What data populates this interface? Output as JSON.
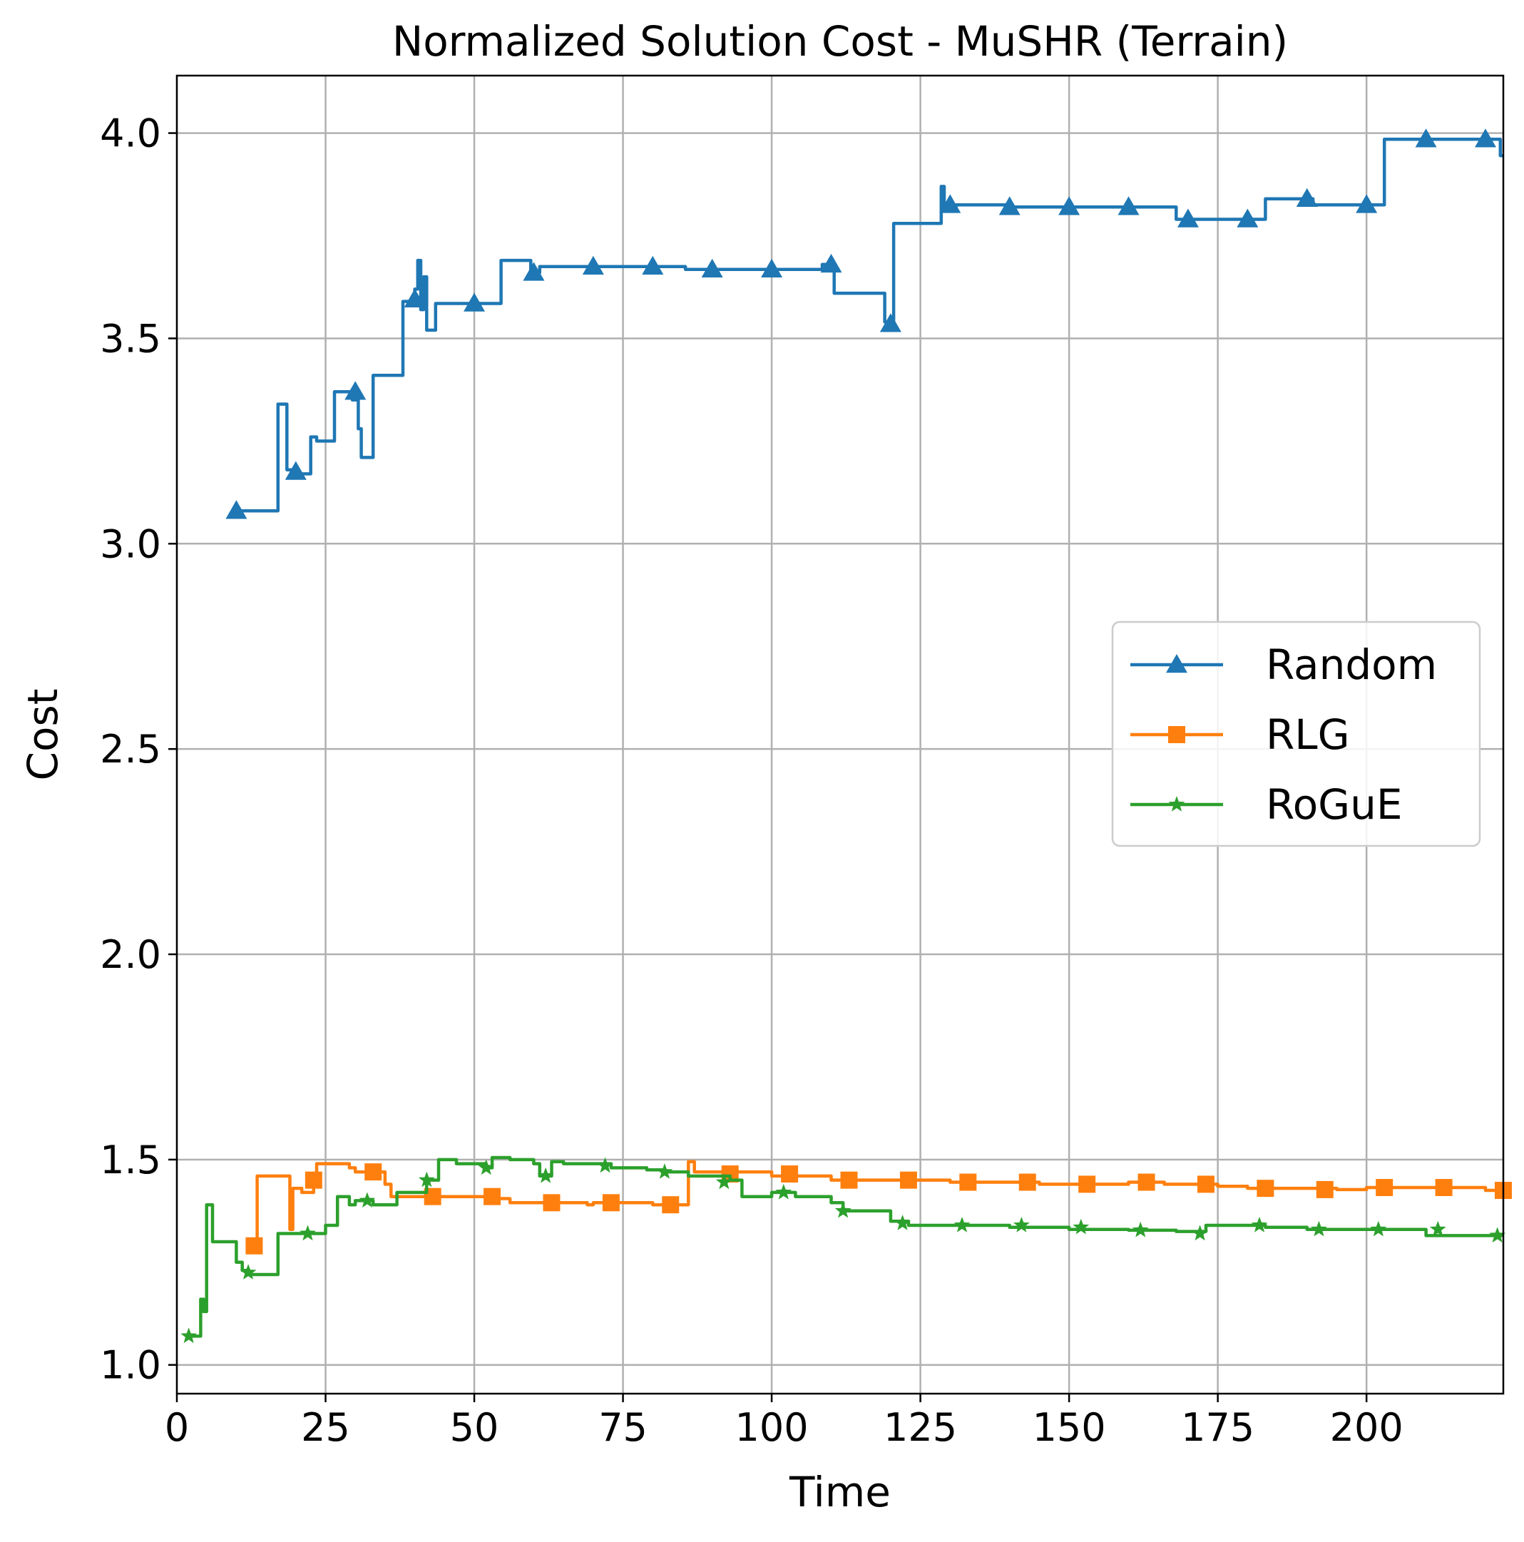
{
  "chart_data": {
    "type": "line",
    "title": "Normalized Solution Cost - MuSHR (Terrain)",
    "xlabel": "Time",
    "ylabel": "Cost",
    "xlim": [
      0,
      223
    ],
    "ylim": [
      0.93,
      4.14
    ],
    "x_ticks": [
      0,
      25,
      50,
      75,
      100,
      125,
      150,
      175,
      200
    ],
    "y_ticks": [
      1.0,
      1.5,
      2.0,
      2.5,
      3.0,
      3.5,
      4.0
    ],
    "x_tick_labels": [
      "0",
      "25",
      "50",
      "75",
      "100",
      "125",
      "150",
      "175",
      "200"
    ],
    "y_tick_labels": [
      "1.0",
      "1.5",
      "2.0",
      "2.5",
      "3.0",
      "3.5",
      "4.0"
    ],
    "grid": true,
    "legend_position": "center-right",
    "series": [
      {
        "name": "Random",
        "color": "#1f77b4",
        "marker": "triangle",
        "step_points": [
          [
            10,
            3.08
          ],
          [
            17,
            3.08
          ],
          [
            17,
            3.34
          ],
          [
            18.5,
            3.34
          ],
          [
            18.5,
            3.18
          ],
          [
            20.5,
            3.18
          ],
          [
            20.5,
            3.17
          ],
          [
            22.5,
            3.17
          ],
          [
            22.5,
            3.26
          ],
          [
            23.5,
            3.26
          ],
          [
            23.5,
            3.25
          ],
          [
            26.5,
            3.25
          ],
          [
            26.5,
            3.37
          ],
          [
            29.5,
            3.37
          ],
          [
            29.5,
            3.35
          ],
          [
            30.5,
            3.35
          ],
          [
            30.5,
            3.28
          ],
          [
            31,
            3.28
          ],
          [
            31,
            3.21
          ],
          [
            33,
            3.21
          ],
          [
            33,
            3.41
          ],
          [
            38,
            3.41
          ],
          [
            38,
            3.59
          ],
          [
            40,
            3.59
          ],
          [
            40,
            3.62
          ],
          [
            40.5,
            3.62
          ],
          [
            40.5,
            3.69
          ],
          [
            41,
            3.69
          ],
          [
            41,
            3.57
          ],
          [
            41.5,
            3.57
          ],
          [
            41.5,
            3.65
          ],
          [
            42,
            3.65
          ],
          [
            42,
            3.52
          ],
          [
            43.5,
            3.52
          ],
          [
            43.5,
            3.585
          ],
          [
            54.5,
            3.585
          ],
          [
            54.5,
            3.69
          ],
          [
            59.5,
            3.69
          ],
          [
            59.5,
            3.66
          ],
          [
            61,
            3.66
          ],
          [
            61,
            3.675
          ],
          [
            85.5,
            3.675
          ],
          [
            85.5,
            3.668
          ],
          [
            108.5,
            3.668
          ],
          [
            108.5,
            3.68
          ],
          [
            110.5,
            3.68
          ],
          [
            110.5,
            3.61
          ],
          [
            119,
            3.61
          ],
          [
            119,
            3.54
          ],
          [
            120.5,
            3.54
          ],
          [
            120.5,
            3.78
          ],
          [
            128.5,
            3.78
          ],
          [
            128.5,
            3.87
          ],
          [
            129,
            3.87
          ],
          [
            129,
            3.82
          ],
          [
            131,
            3.82
          ],
          [
            131,
            3.825
          ],
          [
            140,
            3.825
          ],
          [
            140,
            3.82
          ],
          [
            168,
            3.82
          ],
          [
            168,
            3.79
          ],
          [
            183,
            3.79
          ],
          [
            183,
            3.84
          ],
          [
            191,
            3.84
          ],
          [
            191,
            3.825
          ],
          [
            203,
            3.825
          ],
          [
            203,
            3.985
          ],
          [
            222.5,
            3.985
          ],
          [
            222.5,
            3.945
          ],
          [
            223,
            3.945
          ]
        ],
        "markers": [
          [
            10,
            3.08
          ],
          [
            20,
            3.175
          ],
          [
            30,
            3.37
          ],
          [
            40,
            3.595
          ],
          [
            50,
            3.585
          ],
          [
            60,
            3.66
          ],
          [
            70,
            3.675
          ],
          [
            80,
            3.675
          ],
          [
            90,
            3.668
          ],
          [
            100,
            3.668
          ],
          [
            110,
            3.68
          ],
          [
            120,
            3.535
          ],
          [
            130,
            3.825
          ],
          [
            140,
            3.82
          ],
          [
            150,
            3.82
          ],
          [
            160,
            3.82
          ],
          [
            170,
            3.79
          ],
          [
            180,
            3.79
          ],
          [
            190,
            3.84
          ],
          [
            200,
            3.825
          ],
          [
            210,
            3.985
          ],
          [
            220,
            3.985
          ]
        ]
      },
      {
        "name": "RLG",
        "color": "#ff7f0e",
        "marker": "square",
        "step_points": [
          [
            13,
            1.29
          ],
          [
            13.5,
            1.29
          ],
          [
            13.5,
            1.46
          ],
          [
            19,
            1.46
          ],
          [
            19,
            1.33
          ],
          [
            19.5,
            1.33
          ],
          [
            19.5,
            1.43
          ],
          [
            21,
            1.43
          ],
          [
            21,
            1.42
          ],
          [
            23,
            1.42
          ],
          [
            23,
            1.46
          ],
          [
            23.5,
            1.46
          ],
          [
            23.5,
            1.49
          ],
          [
            29,
            1.49
          ],
          [
            29,
            1.48
          ],
          [
            30,
            1.48
          ],
          [
            30,
            1.47
          ],
          [
            35,
            1.47
          ],
          [
            35,
            1.44
          ],
          [
            36,
            1.44
          ],
          [
            36,
            1.41
          ],
          [
            53,
            1.41
          ],
          [
            53,
            1.405
          ],
          [
            56,
            1.405
          ],
          [
            56,
            1.395
          ],
          [
            69,
            1.395
          ],
          [
            69,
            1.39
          ],
          [
            70,
            1.39
          ],
          [
            70,
            1.395
          ],
          [
            80,
            1.395
          ],
          [
            80,
            1.39
          ],
          [
            86,
            1.39
          ],
          [
            86,
            1.495
          ],
          [
            87,
            1.495
          ],
          [
            87,
            1.47
          ],
          [
            100,
            1.47
          ],
          [
            100,
            1.46
          ],
          [
            110,
            1.46
          ],
          [
            110,
            1.45
          ],
          [
            130,
            1.45
          ],
          [
            130,
            1.445
          ],
          [
            145,
            1.445
          ],
          [
            145,
            1.44
          ],
          [
            160,
            1.44
          ],
          [
            160,
            1.445
          ],
          [
            166,
            1.445
          ],
          [
            166,
            1.44
          ],
          [
            175,
            1.44
          ],
          [
            175,
            1.435
          ],
          [
            180,
            1.435
          ],
          [
            180,
            1.43
          ],
          [
            195,
            1.43
          ],
          [
            195,
            1.427
          ],
          [
            200,
            1.427
          ],
          [
            200,
            1.432
          ],
          [
            220,
            1.432
          ],
          [
            220,
            1.425
          ],
          [
            223,
            1.425
          ]
        ],
        "markers": [
          [
            13,
            1.29
          ],
          [
            23,
            1.45
          ],
          [
            33,
            1.47
          ],
          [
            43,
            1.41
          ],
          [
            53,
            1.41
          ],
          [
            63,
            1.395
          ],
          [
            73,
            1.395
          ],
          [
            83,
            1.39
          ],
          [
            93,
            1.465
          ],
          [
            103,
            1.465
          ],
          [
            113,
            1.45
          ],
          [
            123,
            1.45
          ],
          [
            133,
            1.445
          ],
          [
            143,
            1.445
          ],
          [
            153,
            1.44
          ],
          [
            163,
            1.445
          ],
          [
            173,
            1.44
          ],
          [
            183,
            1.43
          ],
          [
            193,
            1.427
          ],
          [
            203,
            1.432
          ],
          [
            213,
            1.432
          ],
          [
            223,
            1.425
          ]
        ]
      },
      {
        "name": "RoGuE",
        "color": "#2ca02c",
        "marker": "star",
        "step_points": [
          [
            2,
            1.07
          ],
          [
            4,
            1.07
          ],
          [
            4,
            1.16
          ],
          [
            4.5,
            1.16
          ],
          [
            4.5,
            1.13
          ],
          [
            5,
            1.13
          ],
          [
            5,
            1.39
          ],
          [
            6,
            1.39
          ],
          [
            6,
            1.3
          ],
          [
            10,
            1.3
          ],
          [
            10,
            1.25
          ],
          [
            11,
            1.25
          ],
          [
            11,
            1.23
          ],
          [
            12,
            1.23
          ],
          [
            12,
            1.22
          ],
          [
            17,
            1.22
          ],
          [
            17,
            1.32
          ],
          [
            25,
            1.32
          ],
          [
            25,
            1.34
          ],
          [
            27,
            1.34
          ],
          [
            27,
            1.41
          ],
          [
            29,
            1.41
          ],
          [
            29,
            1.39
          ],
          [
            30,
            1.39
          ],
          [
            30,
            1.4
          ],
          [
            33,
            1.4
          ],
          [
            33,
            1.39
          ],
          [
            37,
            1.39
          ],
          [
            37,
            1.42
          ],
          [
            42,
            1.42
          ],
          [
            42,
            1.45
          ],
          [
            44,
            1.45
          ],
          [
            44,
            1.5
          ],
          [
            47,
            1.5
          ],
          [
            47,
            1.49
          ],
          [
            52,
            1.49
          ],
          [
            52,
            1.48
          ],
          [
            53,
            1.48
          ],
          [
            53,
            1.505
          ],
          [
            56,
            1.505
          ],
          [
            56,
            1.5
          ],
          [
            60,
            1.5
          ],
          [
            60,
            1.49
          ],
          [
            61,
            1.49
          ],
          [
            61,
            1.46
          ],
          [
            63,
            1.46
          ],
          [
            63,
            1.495
          ],
          [
            65,
            1.495
          ],
          [
            65,
            1.49
          ],
          [
            73,
            1.49
          ],
          [
            73,
            1.48
          ],
          [
            79,
            1.48
          ],
          [
            79,
            1.475
          ],
          [
            82,
            1.475
          ],
          [
            82,
            1.47
          ],
          [
            86,
            1.47
          ],
          [
            86,
            1.46
          ],
          [
            93,
            1.46
          ],
          [
            93,
            1.45
          ],
          [
            95,
            1.45
          ],
          [
            95,
            1.41
          ],
          [
            100,
            1.41
          ],
          [
            100,
            1.42
          ],
          [
            104,
            1.42
          ],
          [
            104,
            1.41
          ],
          [
            110,
            1.41
          ],
          [
            110,
            1.395
          ],
          [
            112,
            1.395
          ],
          [
            112,
            1.375
          ],
          [
            120,
            1.375
          ],
          [
            120,
            1.35
          ],
          [
            123,
            1.35
          ],
          [
            123,
            1.34
          ],
          [
            140,
            1.34
          ],
          [
            140,
            1.335
          ],
          [
            150,
            1.335
          ],
          [
            150,
            1.33
          ],
          [
            160,
            1.33
          ],
          [
            160,
            1.328
          ],
          [
            168,
            1.328
          ],
          [
            168,
            1.325
          ],
          [
            173,
            1.325
          ],
          [
            173,
            1.34
          ],
          [
            183,
            1.34
          ],
          [
            183,
            1.335
          ],
          [
            190,
            1.335
          ],
          [
            190,
            1.33
          ],
          [
            210,
            1.33
          ],
          [
            210,
            1.315
          ],
          [
            223,
            1.315
          ]
        ],
        "markers": [
          [
            2,
            1.07
          ],
          [
            12,
            1.225
          ],
          [
            22,
            1.32
          ],
          [
            32,
            1.4
          ],
          [
            42,
            1.45
          ],
          [
            52,
            1.48
          ],
          [
            62,
            1.46
          ],
          [
            72,
            1.485
          ],
          [
            82,
            1.47
          ],
          [
            92,
            1.445
          ],
          [
            102,
            1.42
          ],
          [
            112,
            1.375
          ],
          [
            122,
            1.345
          ],
          [
            132,
            1.34
          ],
          [
            142,
            1.34
          ],
          [
            152,
            1.335
          ],
          [
            162,
            1.328
          ],
          [
            172,
            1.32
          ],
          [
            182,
            1.34
          ],
          [
            192,
            1.33
          ],
          [
            202,
            1.33
          ],
          [
            212,
            1.33
          ],
          [
            222,
            1.315
          ]
        ]
      }
    ]
  }
}
